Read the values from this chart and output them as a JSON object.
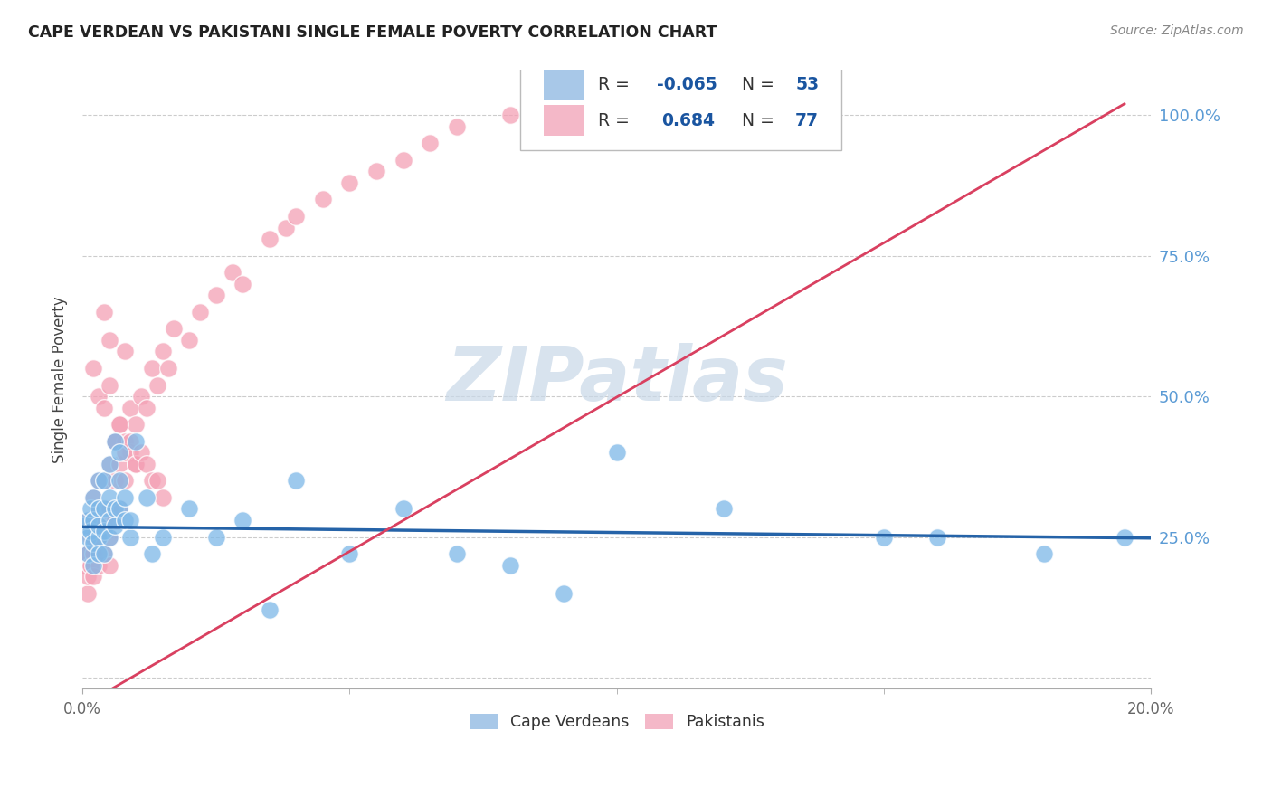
{
  "title": "CAPE VERDEAN VS PAKISTANI SINGLE FEMALE POVERTY CORRELATION CHART",
  "source": "Source: ZipAtlas.com",
  "ylabel": "Single Female Poverty",
  "xlim": [
    0.0,
    0.2
  ],
  "ylim": [
    -0.02,
    1.08
  ],
  "ytick_values": [
    0.0,
    0.25,
    0.5,
    0.75,
    1.0
  ],
  "ytick_labels_right": [
    "",
    "25.0%",
    "50.0%",
    "75.0%",
    "100.0%"
  ],
  "xtick_values": [
    0.0,
    0.2
  ],
  "xtick_labels": [
    "0.0%",
    "20.0%"
  ],
  "blue_scatter_color": "#7db8e8",
  "pink_scatter_color": "#f4a0b5",
  "blue_line_color": "#2563a8",
  "pink_line_color": "#d94060",
  "blue_legend_color": "#a8c8e8",
  "pink_legend_color": "#f4b8c8",
  "right_axis_color": "#5b9bd5",
  "watermark_color": "#c8d8e8",
  "cv_R": -0.065,
  "cv_N": 53,
  "pk_R": 0.684,
  "pk_N": 77,
  "cv_x": [
    0.0005,
    0.001,
    0.001,
    0.001,
    0.0015,
    0.0015,
    0.002,
    0.002,
    0.002,
    0.002,
    0.003,
    0.003,
    0.003,
    0.003,
    0.003,
    0.004,
    0.004,
    0.004,
    0.004,
    0.005,
    0.005,
    0.005,
    0.005,
    0.006,
    0.006,
    0.006,
    0.007,
    0.007,
    0.007,
    0.008,
    0.008,
    0.009,
    0.009,
    0.01,
    0.012,
    0.013,
    0.015,
    0.02,
    0.025,
    0.03,
    0.035,
    0.04,
    0.05,
    0.06,
    0.07,
    0.08,
    0.09,
    0.1,
    0.12,
    0.15,
    0.16,
    0.18,
    0.195
  ],
  "cv_y": [
    0.27,
    0.25,
    0.28,
    0.22,
    0.26,
    0.3,
    0.24,
    0.28,
    0.32,
    0.2,
    0.25,
    0.27,
    0.3,
    0.22,
    0.35,
    0.26,
    0.3,
    0.22,
    0.35,
    0.25,
    0.28,
    0.32,
    0.38,
    0.27,
    0.3,
    0.42,
    0.3,
    0.35,
    0.4,
    0.28,
    0.32,
    0.25,
    0.28,
    0.42,
    0.32,
    0.22,
    0.25,
    0.3,
    0.25,
    0.28,
    0.12,
    0.35,
    0.22,
    0.3,
    0.22,
    0.2,
    0.15,
    0.4,
    0.3,
    0.25,
    0.25,
    0.22,
    0.25
  ],
  "pk_x": [
    0.0003,
    0.0005,
    0.0005,
    0.001,
    0.001,
    0.001,
    0.001,
    0.0015,
    0.0015,
    0.002,
    0.002,
    0.002,
    0.002,
    0.002,
    0.003,
    0.003,
    0.003,
    0.003,
    0.004,
    0.004,
    0.004,
    0.005,
    0.005,
    0.005,
    0.005,
    0.006,
    0.006,
    0.006,
    0.007,
    0.007,
    0.007,
    0.008,
    0.008,
    0.009,
    0.009,
    0.01,
    0.01,
    0.011,
    0.012,
    0.013,
    0.014,
    0.015,
    0.016,
    0.017,
    0.02,
    0.022,
    0.025,
    0.028,
    0.03,
    0.035,
    0.038,
    0.04,
    0.045,
    0.05,
    0.055,
    0.06,
    0.065,
    0.07,
    0.08,
    0.09,
    0.002,
    0.003,
    0.004,
    0.005,
    0.006,
    0.007,
    0.008,
    0.009,
    0.01,
    0.011,
    0.012,
    0.013,
    0.014,
    0.015,
    0.004,
    0.005,
    0.008
  ],
  "pk_y": [
    0.27,
    0.2,
    0.22,
    0.15,
    0.18,
    0.22,
    0.28,
    0.2,
    0.25,
    0.18,
    0.22,
    0.25,
    0.28,
    0.32,
    0.2,
    0.25,
    0.3,
    0.35,
    0.22,
    0.28,
    0.35,
    0.2,
    0.25,
    0.3,
    0.38,
    0.28,
    0.35,
    0.42,
    0.3,
    0.38,
    0.45,
    0.35,
    0.42,
    0.4,
    0.48,
    0.38,
    0.45,
    0.5,
    0.48,
    0.55,
    0.52,
    0.58,
    0.55,
    0.62,
    0.6,
    0.65,
    0.68,
    0.72,
    0.7,
    0.78,
    0.8,
    0.82,
    0.85,
    0.88,
    0.9,
    0.92,
    0.95,
    0.98,
    1.0,
    1.0,
    0.55,
    0.5,
    0.48,
    0.52,
    0.42,
    0.45,
    0.4,
    0.42,
    0.38,
    0.4,
    0.38,
    0.35,
    0.35,
    0.32,
    0.65,
    0.6,
    0.58
  ]
}
